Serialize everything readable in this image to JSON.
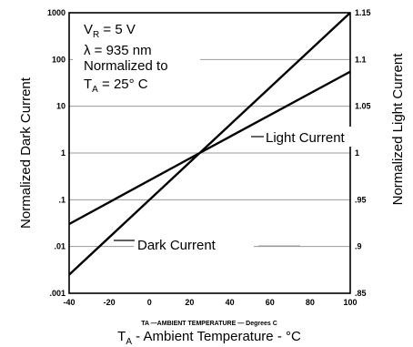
{
  "chart_data": {
    "type": "line",
    "left_axis": {
      "label": "Normalized Dark Current",
      "scale": "log",
      "ylim": [
        0.001,
        1000
      ],
      "tick_labels": [
        "1000",
        "100",
        "10",
        "1",
        ".1",
        ".01",
        ".001"
      ]
    },
    "right_axis": {
      "label": "Normalized Light Current",
      "scale": "linear",
      "ylim": [
        0.85,
        1.15
      ],
      "tick_labels": [
        "1.15",
        "1.1",
        "1.05",
        "1",
        ".95",
        ".9",
        ".85"
      ]
    },
    "x_axis": {
      "xlim": [
        -40,
        100
      ],
      "tick_labels": [
        "-40",
        "-20",
        "0",
        "20",
        "40",
        "60",
        "80",
        "100"
      ],
      "small_label": "TA —AMBIENT TEMPERATURE — Degrees C",
      "label_main": "T",
      "label_sub": "A",
      "label_rest": " - Ambient Temperature - °C"
    },
    "series": [
      {
        "name": "Dark Current",
        "axis": "left",
        "x": [
          -40,
          25,
          100
        ],
        "y": [
          0.0025,
          1,
          1000
        ]
      },
      {
        "name": "Light Current",
        "axis": "right",
        "x": [
          -40,
          25,
          100
        ],
        "y": [
          0.924,
          1.0,
          1.087
        ]
      }
    ],
    "annotations": {
      "vr_main": "V",
      "vr_sub": "R",
      "vr_rest": " = 5 V",
      "lambda": "λ = 935 nm",
      "normalized": "Normalized to",
      "ta_main": "T",
      "ta_sub": "A",
      "ta_rest": " = 25° C"
    },
    "grid": true
  }
}
